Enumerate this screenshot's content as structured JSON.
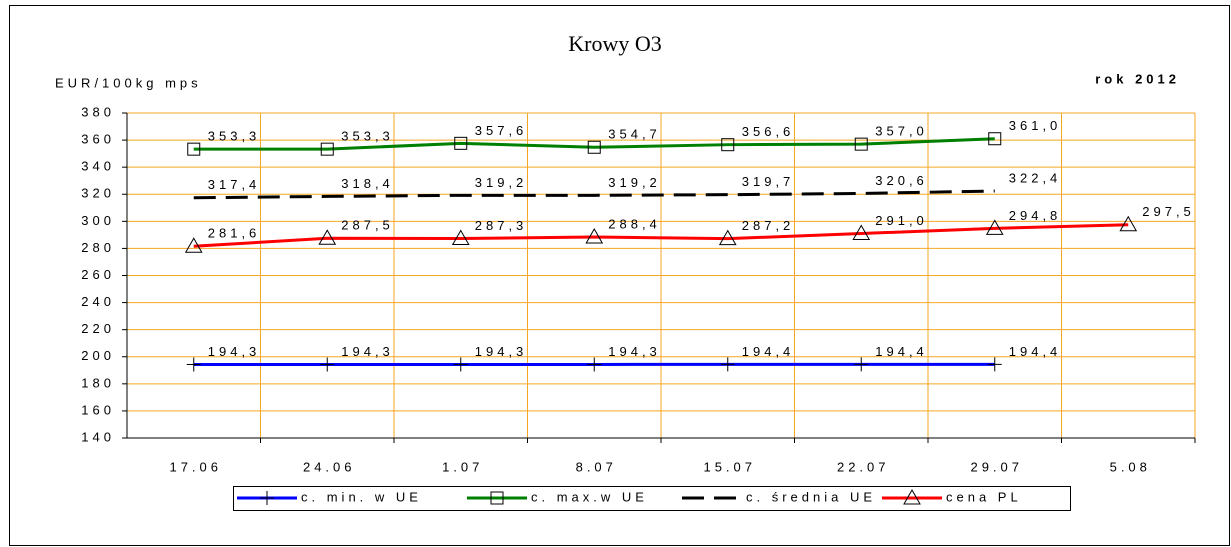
{
  "chart_data": {
    "type": "line",
    "title": "Krowy O3",
    "y_label": "EUR/100kg mps",
    "annotation": "rok 2012",
    "categories": [
      "17.06",
      "24.06",
      "1.07",
      "8.07",
      "15.07",
      "22.07",
      "29.07",
      "5.08"
    ],
    "ylim": [
      140,
      380
    ],
    "yticks": [
      140,
      160,
      180,
      200,
      220,
      240,
      260,
      280,
      300,
      320,
      340,
      360,
      380
    ],
    "grid": true,
    "grid_color": "#f5a623",
    "series": [
      {
        "name": "c. min. w UE",
        "color": "#0000ff",
        "marker": "plus",
        "dash": false,
        "values": [
          194.3,
          194.3,
          194.3,
          194.3,
          194.4,
          194.4,
          194.4,
          null
        ],
        "value_labels": [
          "194,3",
          "194,3",
          "194,3",
          "194,3",
          "194,4",
          "194,4",
          "194,4",
          null
        ]
      },
      {
        "name": "c. max.w UE",
        "color": "#008000",
        "marker": "square",
        "dash": false,
        "values": [
          353.3,
          353.3,
          357.6,
          354.7,
          356.6,
          357.0,
          361.0,
          null
        ],
        "value_labels": [
          "353,3",
          "353,3",
          "357,6",
          "354,7",
          "356,6",
          "357,0",
          "361,0",
          null
        ]
      },
      {
        "name": "c. średnia UE",
        "color": "#000000",
        "marker": "none",
        "dash": true,
        "values": [
          317.4,
          318.4,
          319.2,
          319.2,
          319.7,
          320.6,
          322.4,
          null
        ],
        "value_labels": [
          "317,4",
          "318,4",
          "319,2",
          "319,2",
          "319,7",
          "320,6",
          "322,4",
          null
        ]
      },
      {
        "name": "cena PL",
        "color": "#ff0000",
        "marker": "triangle",
        "dash": false,
        "values": [
          281.6,
          287.5,
          287.3,
          288.4,
          287.2,
          291.0,
          294.8,
          297.5
        ],
        "value_labels": [
          "281,6",
          "287,5",
          "287,3",
          "288,4",
          "287,2",
          "291,0",
          "294,8",
          "297,5"
        ]
      }
    ]
  }
}
